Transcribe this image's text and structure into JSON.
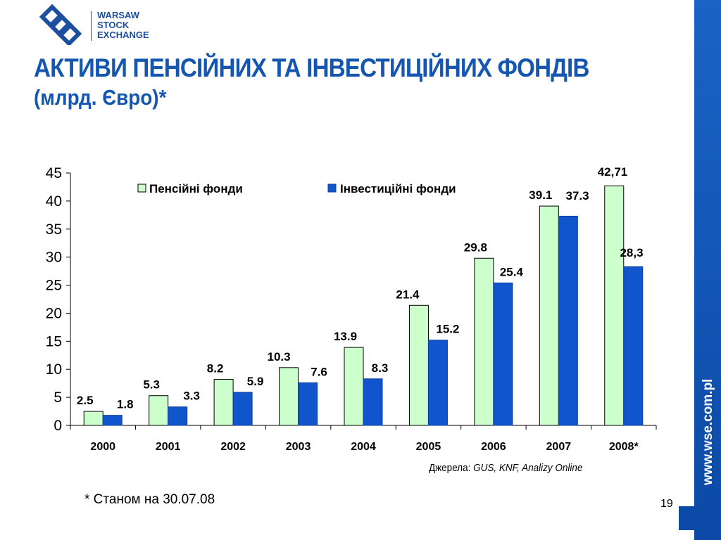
{
  "header": {
    "logo_lines": [
      "WARSAW",
      "STOCK",
      "EXCHANGE"
    ],
    "title": "АКТИВИ ПЕНСІЙНИХ ТА ІНВЕСТИЦІЙНИХ ФОНДІВ",
    "subtitle": "(млрд. Євро)*"
  },
  "footer": {
    "footnote": "* Станом на 30.07.08",
    "source_prefix": "Джерела:",
    "source_names": "GUS, KNF, Analizy Online",
    "page_number": "19",
    "site": "www.wse.com.pl"
  },
  "colors": {
    "brand_blue": "#1557b0",
    "pension_fill": "#ccffcc",
    "investment_fill": "#1155cc"
  },
  "chart_data": {
    "type": "bar",
    "title": "",
    "xlabel": "",
    "ylabel": "",
    "ylim": [
      0,
      45
    ],
    "yticks": [
      "0",
      "5",
      "10",
      "15",
      "20",
      "25",
      "30",
      "35",
      "40",
      "45"
    ],
    "grid": false,
    "legend_position": "top",
    "categories": [
      "2000",
      "2001",
      "2002",
      "2003",
      "2004",
      "2005",
      "2006",
      "2007",
      "2008*"
    ],
    "series": [
      {
        "name": "Пенсійні фонди",
        "values": [
          2.5,
          5.3,
          8.2,
          10.3,
          13.9,
          21.4,
          29.8,
          39.1,
          42.71
        ],
        "labels": [
          "2.5",
          "5.3",
          "8.2",
          "10.3",
          "13.9",
          "21.4",
          "29.8",
          "39.1",
          "42,71"
        ]
      },
      {
        "name": "Інвестиційні фонди",
        "values": [
          1.8,
          3.3,
          5.9,
          7.6,
          8.3,
          15.2,
          25.4,
          37.3,
          28.3
        ],
        "labels": [
          "1.8",
          "3.3",
          "5.9",
          "7.6",
          "8.3",
          "15.2",
          "25.4",
          "37.3",
          "28,3"
        ]
      }
    ]
  }
}
